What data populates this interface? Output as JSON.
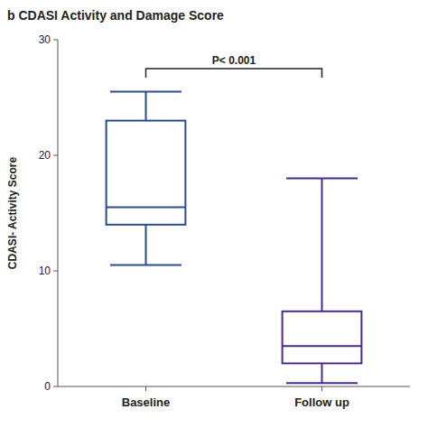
{
  "chart_data": {
    "type": "box",
    "title": "b  CDASI Activity and Damage Score",
    "y_label": "CDASI- Activity Score",
    "categories": [
      "Baseline",
      "Follow up"
    ],
    "boxes": [
      {
        "whisker_low": 10.5,
        "q1": 14.0,
        "median": 15.5,
        "q3": 23.0,
        "whisker_high": 25.5,
        "color": "#2c4b8c"
      },
      {
        "whisker_low": 0.3,
        "q1": 2.0,
        "median": 3.5,
        "q3": 6.5,
        "whisker_high": 18.0,
        "color": "#4b2b8c"
      }
    ],
    "annotations": [
      {
        "text": "P< 0.001",
        "y": 27.5
      }
    ],
    "ylim": [
      0,
      30
    ],
    "yticks": [
      0,
      10,
      20,
      30
    ],
    "grid": false
  }
}
